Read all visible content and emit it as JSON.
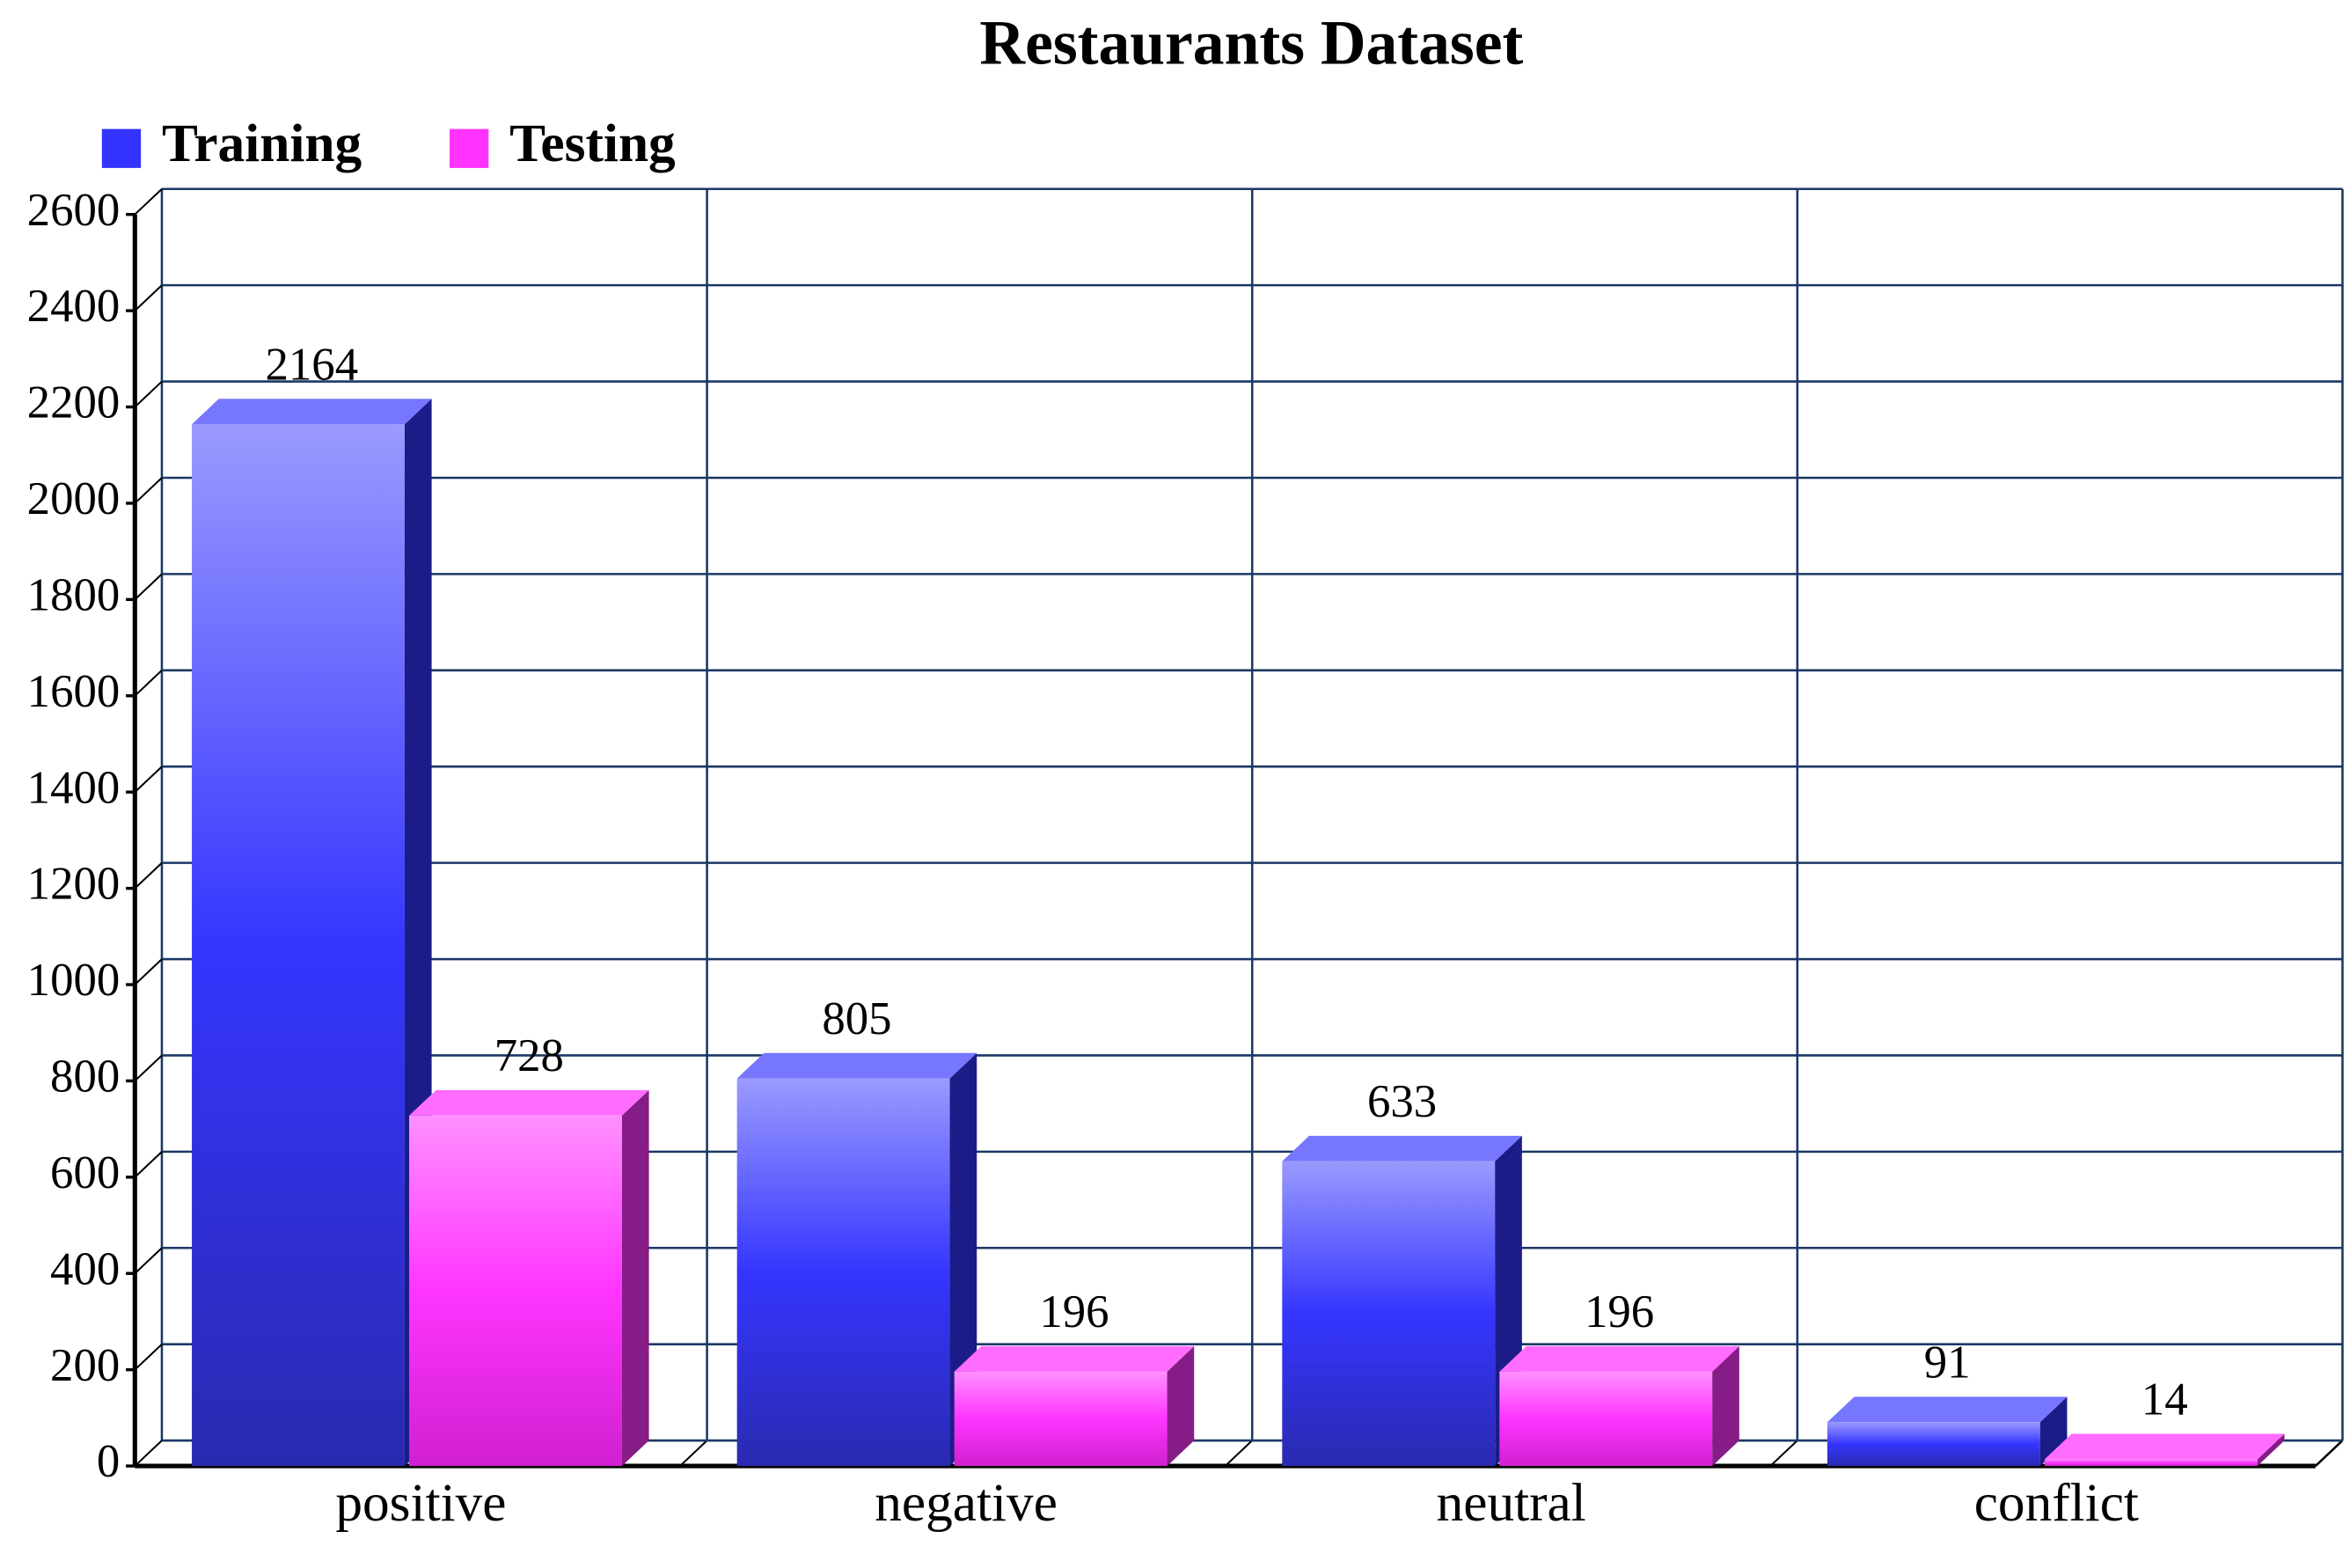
{
  "chart_data": {
    "type": "bar3d",
    "title": "Restaurants Dataset",
    "categories": [
      "positive",
      "negative",
      "neutral",
      "conflict"
    ],
    "series": [
      {
        "name": "Training",
        "color": "#3333ff",
        "values": [
          2164,
          805,
          633,
          91
        ]
      },
      {
        "name": "Testing",
        "color": "#ff33ff",
        "values": [
          728,
          196,
          196,
          14
        ]
      }
    ],
    "ylim": [
      0,
      2600
    ],
    "yticks": [
      0,
      200,
      400,
      600,
      800,
      1000,
      1200,
      1400,
      1600,
      1800,
      2000,
      2200,
      2400,
      2600
    ],
    "grid": true,
    "legend": "top-left"
  }
}
